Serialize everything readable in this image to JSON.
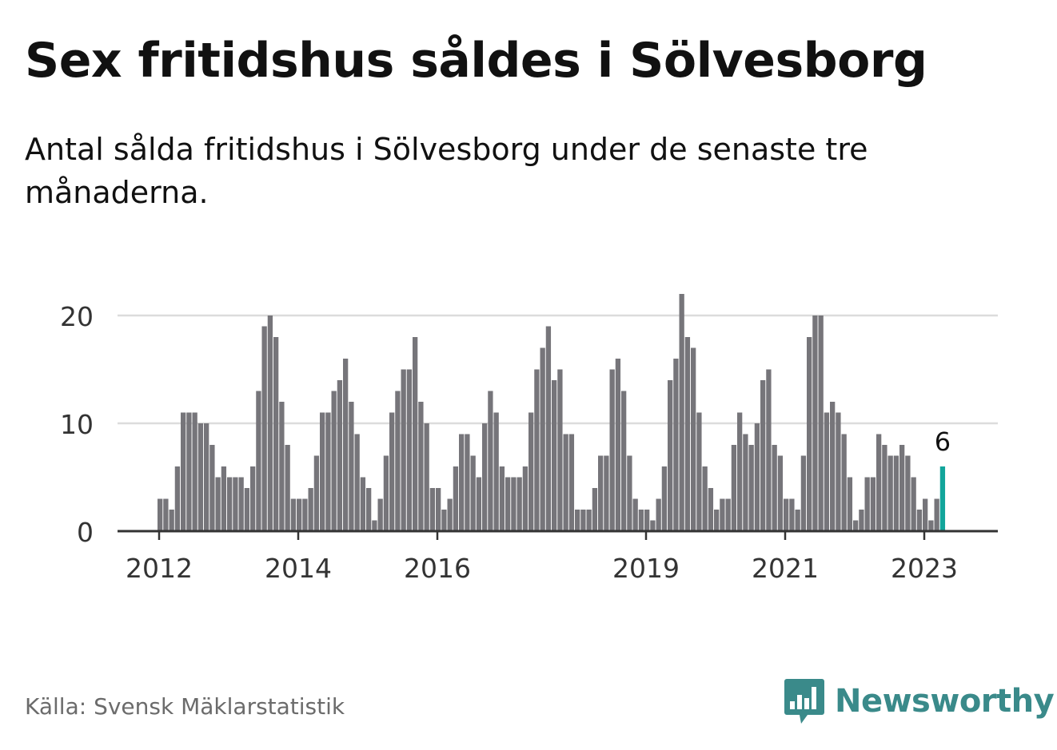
{
  "title": "Sex fritidshus såldes i Sölvesborg",
  "subtitle": "Antal sålda fritidshus i Sölvesborg under de senaste tre månaderna.",
  "source": "Källa: Svensk Mäklarstatistik",
  "brand": {
    "name": "Newsworthy",
    "icon": "bar-chart-speech-bubble-icon",
    "color": "#3a8a8a"
  },
  "colors": {
    "bar": "#76757a",
    "highlight": "#12a59b",
    "grid": "#dcdcdc",
    "axis": "#333333"
  },
  "chart_data": {
    "type": "bar",
    "ylim": [
      0,
      22
    ],
    "yticks": [
      0,
      10,
      20
    ],
    "grid": true,
    "xtick_labels": [
      {
        "label": "2012",
        "index": 0
      },
      {
        "label": "2014",
        "index": 24
      },
      {
        "label": "2016",
        "index": 48
      },
      {
        "label": "2019",
        "index": 84
      },
      {
        "label": "2021",
        "index": 108
      },
      {
        "label": "2023",
        "index": 132
      }
    ],
    "start": "2012-01",
    "values": [
      3,
      3,
      2,
      6,
      11,
      11,
      11,
      10,
      10,
      8,
      5,
      6,
      5,
      5,
      5,
      4,
      6,
      13,
      19,
      20,
      18,
      12,
      8,
      3,
      3,
      3,
      4,
      7,
      11,
      11,
      13,
      14,
      16,
      12,
      9,
      5,
      4,
      1,
      3,
      7,
      11,
      13,
      15,
      15,
      18,
      12,
      10,
      4,
      4,
      2,
      3,
      6,
      9,
      9,
      7,
      5,
      10,
      13,
      11,
      6,
      5,
      5,
      5,
      6,
      11,
      15,
      17,
      19,
      14,
      15,
      9,
      9,
      2,
      2,
      2,
      4,
      7,
      7,
      15,
      16,
      13,
      7,
      3,
      2,
      2,
      1,
      3,
      6,
      14,
      16,
      22,
      18,
      17,
      11,
      6,
      4,
      2,
      3,
      3,
      8,
      11,
      9,
      8,
      10,
      14,
      15,
      8,
      7,
      3,
      3,
      2,
      7,
      18,
      20,
      20,
      11,
      12,
      11,
      9,
      5,
      1,
      2,
      5,
      5,
      9,
      8,
      7,
      7,
      8,
      7,
      5,
      2,
      3,
      1,
      3,
      6
    ],
    "highlight": {
      "index": 135,
      "value": 6,
      "label": "6"
    }
  }
}
